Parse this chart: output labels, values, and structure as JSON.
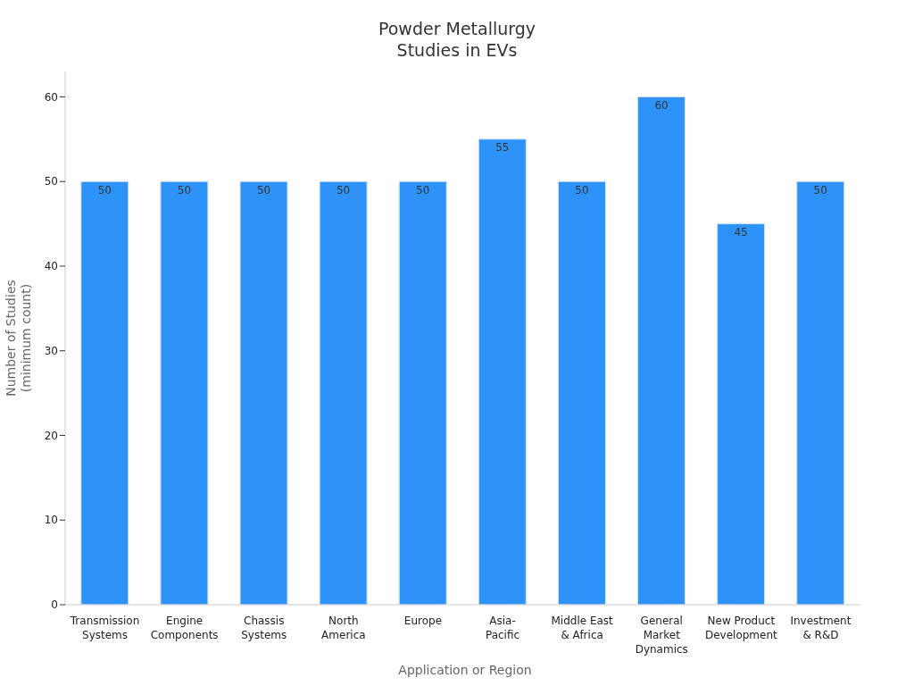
{
  "chart_data": {
    "type": "bar",
    "title": "Powder Metallurgy Studies in EVs",
    "xlabel": "Application or Region",
    "ylabel": "Number of Studies (minimum count)",
    "categories": [
      "Transmission Systems",
      "Engine Components",
      "Chassis Systems",
      "North America",
      "Europe",
      "Asia-Pacific",
      "Middle East & Africa",
      "General Market Dynamics",
      "New Product Development",
      "Investment & R&D"
    ],
    "values": [
      50,
      50,
      50,
      50,
      50,
      55,
      50,
      60,
      45,
      50
    ],
    "color": "#2e93f8",
    "ylim": [
      0,
      63
    ],
    "yticks": [
      0,
      10,
      20,
      30,
      40,
      50,
      60
    ],
    "data_labels": true
  }
}
